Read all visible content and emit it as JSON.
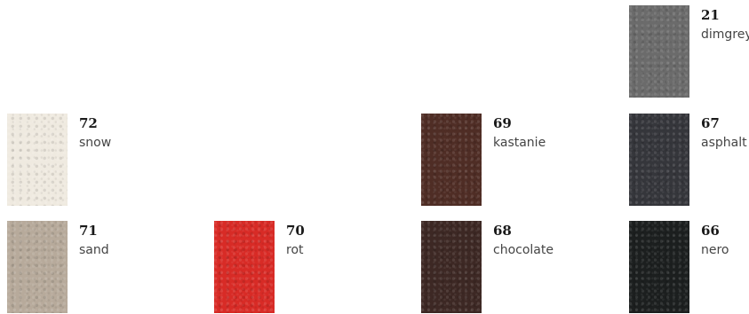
{
  "swatches": [
    {
      "code": "21",
      "name": "dimgrey",
      "color": "#6b6b6b"
    },
    {
      "code": "72",
      "name": "snow",
      "color": "#efeae0"
    },
    {
      "code": "69",
      "name": "kastanie",
      "color": "#4f2d25"
    },
    {
      "code": "67",
      "name": "asphalt",
      "color": "#35363b"
    },
    {
      "code": "71",
      "name": "sand",
      "color": "#b7aa9b"
    },
    {
      "code": "70",
      "name": "rot",
      "color": "#d82b26"
    },
    {
      "code": "68",
      "name": "chocolate",
      "color": "#3d2824"
    },
    {
      "code": "66",
      "name": "nero",
      "color": "#1c1f1f"
    }
  ]
}
